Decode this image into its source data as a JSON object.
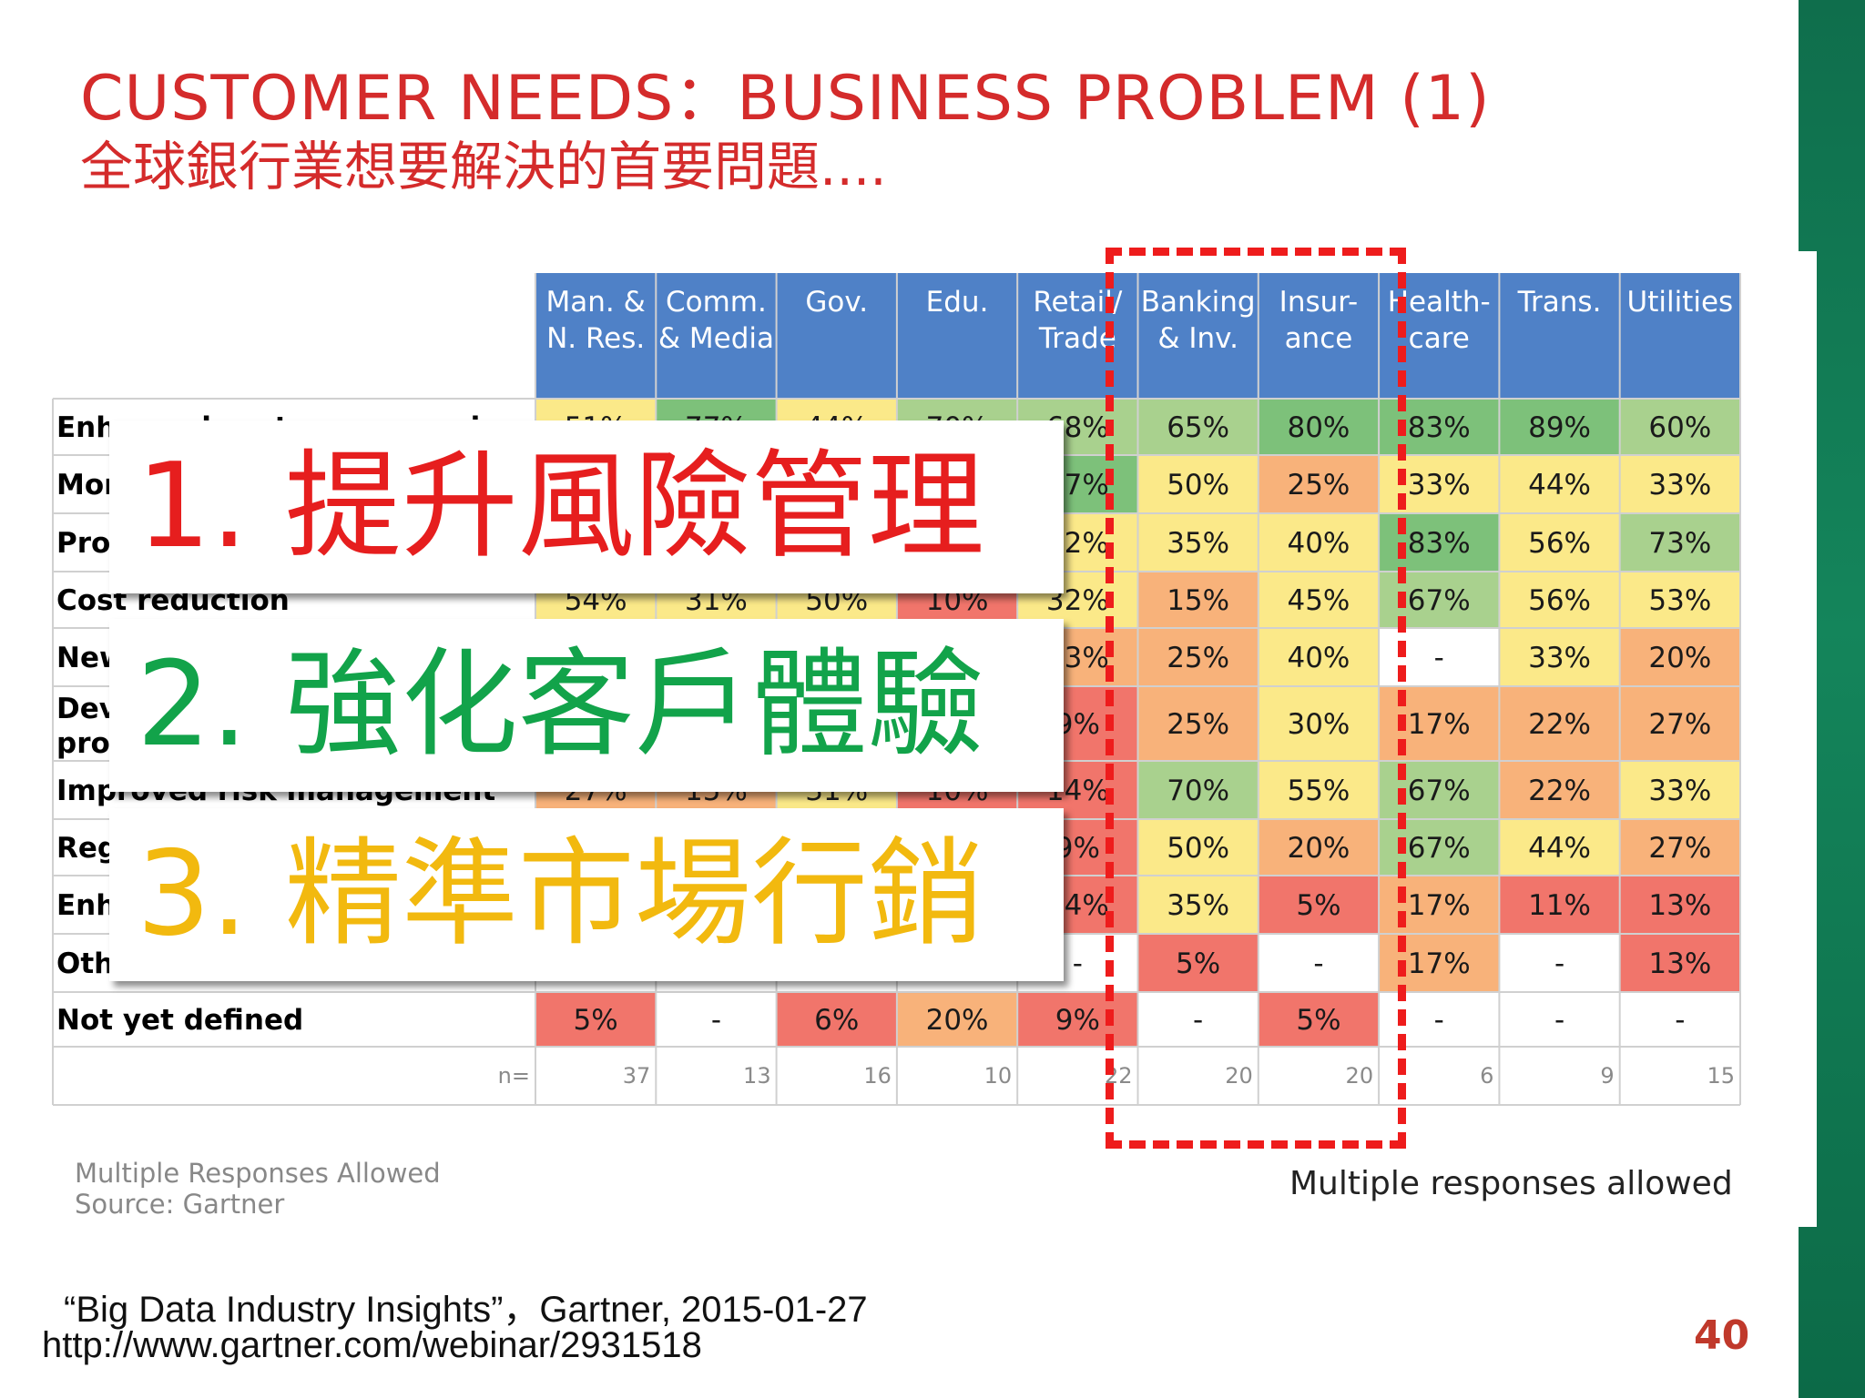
{
  "slide": {
    "title": "CUSTOMER NEEDS：BUSINESS PROBLEM (1)",
    "subtitle": "全球銀行業想要解決的首要問題....",
    "page_number": "40",
    "citation": "“Big Data Industry Insights”，Gartner, 2015-01-27",
    "url": "http://www.gartner.com/webinar/2931518",
    "notes": {
      "multiple_left": "Multiple Responses Allowed",
      "source": "Source: Gartner",
      "multiple_right": "Multiple responses allowed"
    }
  },
  "overlays": [
    {
      "text": "1. 提升風險管理",
      "color": "#e61e1e"
    },
    {
      "text": "2. 強化客戶體驗",
      "color": "#12a34a"
    },
    {
      "text": "3. 精準市場行銷",
      "color": "#f2b90f"
    }
  ],
  "chart_data": {
    "type": "heatmap",
    "columns": [
      [
        "Man. &",
        "N. Res."
      ],
      [
        "Comm.",
        "& Media"
      ],
      [
        "Gov."
      ],
      [
        "Edu."
      ],
      [
        "Retail/",
        "Trade"
      ],
      [
        "Banking",
        "& Inv."
      ],
      [
        "Insur-",
        "ance"
      ],
      [
        "Health-",
        "care"
      ],
      [
        "Trans."
      ],
      [
        "Utilities"
      ]
    ],
    "rows": [
      {
        "label": [
          "Enhanced customer experience"
        ],
        "values": [
          "51%",
          "77%",
          "44%",
          "70%",
          "68%",
          "65%",
          "80%",
          "83%",
          "89%",
          "60%"
        ]
      },
      {
        "label": [
          "Mor"
        ],
        "values": [
          "",
          "",
          "",
          "",
          "77%",
          "50%",
          "25%",
          "33%",
          "44%",
          "33%"
        ]
      },
      {
        "label": [
          "Pro"
        ],
        "values": [
          "",
          "",
          "",
          "",
          "32%",
          "35%",
          "40%",
          "83%",
          "56%",
          "73%"
        ]
      },
      {
        "label": [
          "Cost reduction"
        ],
        "values": [
          "54%",
          "31%",
          "50%",
          "10%",
          "32%",
          "15%",
          "45%",
          "67%",
          "56%",
          "53%"
        ]
      },
      {
        "label": [
          "New"
        ],
        "values": [
          "",
          "",
          "",
          "",
          "23%",
          "25%",
          "40%",
          "-",
          "33%",
          "20%"
        ]
      },
      {
        "label": [
          "Dev",
          "pro"
        ],
        "values": [
          "",
          "",
          "",
          "",
          "9%",
          "25%",
          "30%",
          "17%",
          "22%",
          "27%"
        ]
      },
      {
        "label": [
          "Improved risk management"
        ],
        "values": [
          "27%",
          "15%",
          "31%",
          "10%",
          "14%",
          "70%",
          "55%",
          "67%",
          "22%",
          "33%"
        ]
      },
      {
        "label": [
          "Reg"
        ],
        "values": [
          "",
          "",
          "",
          "",
          "9%",
          "50%",
          "20%",
          "67%",
          "44%",
          "27%"
        ]
      },
      {
        "label": [
          "Enh"
        ],
        "values": [
          "",
          "",
          "",
          "",
          "14%",
          "35%",
          "5%",
          "17%",
          "11%",
          "13%"
        ]
      },
      {
        "label": [
          "Oth"
        ],
        "values": [
          "",
          "",
          "",
          "",
          "-",
          "5%",
          "-",
          "17%",
          "-",
          "13%"
        ]
      },
      {
        "label": [
          "Not yet defined"
        ],
        "values": [
          "5%",
          "-",
          "6%",
          "20%",
          "9%",
          "-",
          "5%",
          "-",
          "-",
          "-"
        ]
      }
    ],
    "n_label": "n=",
    "n_values": [
      "37",
      "13",
      "16",
      "10",
      "22",
      "20",
      "20",
      "6",
      "9",
      "15"
    ],
    "colors": {
      "header": "#4f81c7",
      "dark_green": "#7dc17a",
      "green": "#a9d18e",
      "yellow": "#fbe989",
      "orange": "#f8b27a",
      "red": "#f1756b",
      "white": "#ffffff"
    },
    "highlight_column": "Banking & Inv.",
    "legend": "none"
  }
}
